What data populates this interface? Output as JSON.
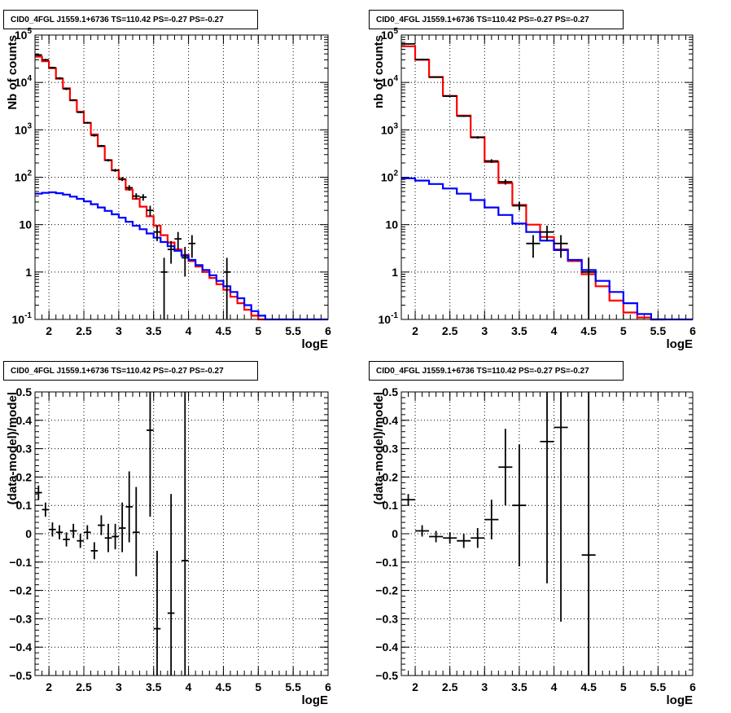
{
  "chart_data": [
    {
      "type": "step-histogram",
      "title": "CID0_4FGL J1559.1+6736 TS=110.42 PS=-0.27 PS=-0.27",
      "xlabel": "logE",
      "ylabel": "Nb of counts",
      "xlim": [
        1.8,
        6.0
      ],
      "ylim": [
        0.1,
        100000
      ],
      "yscale": "log",
      "grid": true,
      "xticks": [
        "2",
        "2.5",
        "3",
        "3.5",
        "4",
        "4.5",
        "5",
        "5.5",
        "6"
      ],
      "yticks": [
        "10^-1",
        "1",
        "10",
        "10^2",
        "10^3",
        "10^4",
        "10^5"
      ],
      "series": [
        {
          "color": "#ff0000",
          "kind": "step",
          "edges": [
            1.8,
            1.9,
            2.0,
            2.1,
            2.2,
            2.3,
            2.4,
            2.5,
            2.6,
            2.7,
            2.8,
            2.9,
            3.0,
            3.1,
            3.2,
            3.3,
            3.4,
            3.5,
            3.6,
            3.7,
            3.8,
            3.9,
            4.0,
            4.1,
            4.2,
            4.3,
            4.4,
            4.5,
            4.6,
            4.7,
            4.8,
            4.9,
            5.0,
            5.1
          ],
          "values": [
            35000,
            28000,
            20000,
            12000,
            7500,
            4200,
            2400,
            1400,
            800,
            450,
            230,
            140,
            90,
            55,
            35,
            24,
            15,
            9.5,
            6,
            4.2,
            3,
            2.3,
            1.7,
            1.3,
            1,
            0.75,
            0.55,
            0.42,
            0.3,
            0.22,
            0.16,
            0.12,
            0.1
          ]
        },
        {
          "color": "#0000ff",
          "kind": "step",
          "edges": [
            1.8,
            1.9,
            2.0,
            2.1,
            2.2,
            2.3,
            2.4,
            2.5,
            2.6,
            2.7,
            2.8,
            2.9,
            3.0,
            3.1,
            3.2,
            3.3,
            3.4,
            3.5,
            3.6,
            3.7,
            3.8,
            3.9,
            4.0,
            4.1,
            4.2,
            4.3,
            4.4,
            4.5,
            4.6,
            4.7,
            4.8,
            4.9,
            5.0,
            5.1,
            5.2,
            5.3,
            5.4,
            5.5,
            5.6,
            5.7,
            5.8,
            5.9,
            6.0
          ],
          "values": [
            45,
            47,
            48,
            46,
            43,
            39,
            35,
            31,
            27,
            23,
            19.5,
            16.5,
            14,
            11.5,
            9.5,
            8,
            6.5,
            5.3,
            4.3,
            3.5,
            2.8,
            2.2,
            1.8,
            1.4,
            1.1,
            0.85,
            0.65,
            0.5,
            0.38,
            0.28,
            0.2,
            0.15,
            0.12,
            0.1,
            0.1,
            0.1,
            0.1,
            0.1,
            0.1,
            0.1,
            0.1,
            0.1
          ]
        },
        {
          "color": "#000000",
          "kind": "errorbars",
          "points": [
            {
              "x": 1.85,
              "y": 38000,
              "xerr": 0.05,
              "lo": 36000,
              "hi": 40000
            },
            {
              "x": 1.95,
              "y": 30000,
              "xerr": 0.05,
              "lo": 28500,
              "hi": 31500
            },
            {
              "x": 2.05,
              "y": 20500,
              "xerr": 0.05,
              "lo": 19500,
              "hi": 21500
            },
            {
              "x": 2.15,
              "y": 12300,
              "xerr": 0.05,
              "lo": 11700,
              "hi": 12900
            },
            {
              "x": 2.25,
              "y": 7300,
              "xerr": 0.05,
              "lo": 6900,
              "hi": 7700
            },
            {
              "x": 2.35,
              "y": 4250,
              "xerr": 0.05,
              "lo": 4100,
              "hi": 4400
            },
            {
              "x": 2.45,
              "y": 2350,
              "xerr": 0.05,
              "lo": 2250,
              "hi": 2450
            },
            {
              "x": 2.55,
              "y": 1410,
              "xerr": 0.05,
              "lo": 1350,
              "hi": 1470
            },
            {
              "x": 2.65,
              "y": 760,
              "xerr": 0.05,
              "lo": 720,
              "hi": 800
            },
            {
              "x": 2.75,
              "y": 460,
              "xerr": 0.05,
              "lo": 440,
              "hi": 480
            },
            {
              "x": 2.85,
              "y": 228,
              "xerr": 0.05,
              "lo": 215,
              "hi": 241
            },
            {
              "x": 2.95,
              "y": 140,
              "xerr": 0.05,
              "lo": 130,
              "hi": 150
            },
            {
              "x": 3.05,
              "y": 92,
              "xerr": 0.05,
              "lo": 83,
              "hi": 101
            },
            {
              "x": 3.15,
              "y": 60,
              "xerr": 0.05,
              "lo": 52,
              "hi": 68
            },
            {
              "x": 3.25,
              "y": 40,
              "xerr": 0.05,
              "lo": 34,
              "hi": 46
            },
            {
              "x": 3.35,
              "y": 38,
              "xerr": 0.05,
              "lo": 32,
              "hi": 44
            },
            {
              "x": 3.45,
              "y": 20,
              "xerr": 0.05,
              "lo": 15,
              "hi": 25
            },
            {
              "x": 3.55,
              "y": 7,
              "xerr": 0.05,
              "lo": 4.5,
              "hi": 9.5
            },
            {
              "x": 3.65,
              "y": 1,
              "xerr": 0.05,
              "lo": 0.1,
              "hi": 2
            },
            {
              "x": 3.75,
              "y": 3,
              "xerr": 0.05,
              "lo": 1.5,
              "hi": 4.5
            },
            {
              "x": 3.85,
              "y": 5,
              "xerr": 0.05,
              "lo": 3,
              "hi": 7
            },
            {
              "x": 3.95,
              "y": 2,
              "xerr": 0.05,
              "lo": 0.8,
              "hi": 3.4
            },
            {
              "x": 4.05,
              "y": 4,
              "xerr": 0.05,
              "lo": 2,
              "hi": 6
            },
            {
              "x": 4.55,
              "y": 1,
              "xerr": 0.05,
              "lo": 0.1,
              "hi": 2
            }
          ]
        }
      ]
    },
    {
      "type": "step-histogram",
      "title": "CID0_4FGL J1559.1+6736 TS=110.42 PS=-0.27 PS=-0.27",
      "xlabel": "logE",
      "ylabel": "nb of counts",
      "xlim": [
        1.8,
        6.0
      ],
      "ylim": [
        0.1,
        100000
      ],
      "yscale": "log",
      "grid": true,
      "xticks": [
        "2",
        "2.5",
        "3",
        "3.5",
        "4",
        "4.5",
        "5",
        "5.5",
        "6"
      ],
      "yticks": [
        "10^-1",
        "1",
        "10",
        "10^2",
        "10^3",
        "10^4",
        "10^5"
      ],
      "series": [
        {
          "color": "#ff0000",
          "kind": "step",
          "edges": [
            1.8,
            2.0,
            2.2,
            2.4,
            2.6,
            2.8,
            3.0,
            3.2,
            3.4,
            3.6,
            3.8,
            4.0,
            4.2,
            4.4,
            4.6,
            4.8,
            5.0,
            5.2,
            5.4,
            5.6
          ],
          "values": [
            58000,
            30000,
            13000,
            5200,
            2000,
            700,
            210,
            75,
            26,
            10,
            5.5,
            3,
            1.7,
            0.9,
            0.5,
            0.25,
            0.14,
            0.11,
            0.1
          ]
        },
        {
          "color": "#0000ff",
          "kind": "step",
          "edges": [
            1.8,
            2.0,
            2.2,
            2.4,
            2.6,
            2.8,
            3.0,
            3.2,
            3.4,
            3.6,
            3.8,
            4.0,
            4.2,
            4.4,
            4.6,
            4.8,
            5.0,
            5.2,
            5.4,
            5.6,
            5.8,
            6.0
          ],
          "values": [
            95,
            85,
            72,
            58,
            45,
            33,
            23,
            16,
            10.5,
            7,
            4.6,
            2.9,
            1.8,
            1.1,
            0.65,
            0.38,
            0.22,
            0.13,
            0.1,
            0.1,
            0.1
          ]
        },
        {
          "color": "#000000",
          "kind": "errorbars",
          "points": [
            {
              "x": 1.9,
              "y": 65000,
              "xerr": 0.1,
              "lo": 63000,
              "hi": 67000
            },
            {
              "x": 2.1,
              "y": 30500,
              "xerr": 0.1,
              "lo": 29500,
              "hi": 31500
            },
            {
              "x": 2.3,
              "y": 12900,
              "xerr": 0.1,
              "lo": 12500,
              "hi": 13300
            },
            {
              "x": 2.5,
              "y": 5150,
              "xerr": 0.1,
              "lo": 4950,
              "hi": 5350
            },
            {
              "x": 2.7,
              "y": 1950,
              "xerr": 0.1,
              "lo": 1870,
              "hi": 2030
            },
            {
              "x": 2.9,
              "y": 690,
              "xerr": 0.1,
              "lo": 650,
              "hi": 730
            },
            {
              "x": 3.1,
              "y": 220,
              "xerr": 0.1,
              "lo": 200,
              "hi": 240
            },
            {
              "x": 3.3,
              "y": 80,
              "xerr": 0.1,
              "lo": 70,
              "hi": 90
            },
            {
              "x": 3.5,
              "y": 25,
              "xerr": 0.1,
              "lo": 20,
              "hi": 30
            },
            {
              "x": 3.7,
              "y": 4,
              "xerr": 0.1,
              "lo": 2,
              "hi": 6
            },
            {
              "x": 3.9,
              "y": 7,
              "xerr": 0.1,
              "lo": 4.5,
              "hi": 9.5
            },
            {
              "x": 4.1,
              "y": 4,
              "xerr": 0.1,
              "lo": 2,
              "hi": 6
            },
            {
              "x": 4.5,
              "y": 1,
              "xerr": 0.1,
              "lo": 0.1,
              "hi": 2
            }
          ]
        }
      ]
    },
    {
      "type": "scatter",
      "title": "CID0_4FGL J1559.1+6736 TS=110.42 PS=-0.27 PS=-0.27",
      "xlabel": "logE",
      "ylabel": "(data-model)/model",
      "xlim": [
        1.8,
        6.0
      ],
      "ylim": [
        -0.5,
        0.5
      ],
      "yscale": "linear",
      "grid": true,
      "xticks": [
        "2",
        "2.5",
        "3",
        "3.5",
        "4",
        "4.5",
        "5",
        "5.5",
        "6"
      ],
      "yticks": [
        "−0.5",
        "−0.4",
        "−0.3",
        "−0.2",
        "−0.1",
        "0",
        "0.1",
        "0.2",
        "0.3",
        "0.4",
        "0.5"
      ],
      "series": [
        {
          "color": "#000000",
          "kind": "errorbars",
          "points": [
            {
              "x": 1.85,
              "y": 0.145,
              "xerr": 0.05,
              "lo": 0.12,
              "hi": 0.17
            },
            {
              "x": 1.95,
              "y": 0.085,
              "xerr": 0.05,
              "lo": 0.06,
              "hi": 0.11
            },
            {
              "x": 2.05,
              "y": 0.015,
              "xerr": 0.05,
              "lo": -0.01,
              "hi": 0.04
            },
            {
              "x": 2.15,
              "y": 0.005,
              "xerr": 0.05,
              "lo": -0.02,
              "hi": 0.03
            },
            {
              "x": 2.25,
              "y": -0.02,
              "xerr": 0.05,
              "lo": -0.045,
              "hi": 0.005
            },
            {
              "x": 2.35,
              "y": 0.01,
              "xerr": 0.05,
              "lo": -0.015,
              "hi": 0.035
            },
            {
              "x": 2.45,
              "y": -0.025,
              "xerr": 0.05,
              "lo": -0.05,
              "hi": 0.0
            },
            {
              "x": 2.55,
              "y": 0.005,
              "xerr": 0.05,
              "lo": -0.02,
              "hi": 0.03
            },
            {
              "x": 2.65,
              "y": -0.06,
              "xerr": 0.05,
              "lo": -0.09,
              "hi": -0.03
            },
            {
              "x": 2.75,
              "y": 0.03,
              "xerr": 0.05,
              "lo": -0.005,
              "hi": 0.065
            },
            {
              "x": 2.85,
              "y": -0.015,
              "xerr": 0.05,
              "lo": -0.065,
              "hi": 0.035
            },
            {
              "x": 2.95,
              "y": -0.01,
              "xerr": 0.05,
              "lo": -0.055,
              "hi": 0.035
            },
            {
              "x": 3.05,
              "y": 0.02,
              "xerr": 0.05,
              "lo": -0.065,
              "hi": 0.11
            },
            {
              "x": 3.15,
              "y": 0.095,
              "xerr": 0.05,
              "lo": -0.03,
              "hi": 0.22
            },
            {
              "x": 3.25,
              "y": 0.005,
              "xerr": 0.05,
              "lo": -0.15,
              "hi": 0.165
            },
            {
              "x": 3.45,
              "y": 0.365,
              "xerr": 0.05,
              "lo": 0.06,
              "hi": 0.5
            },
            {
              "x": 3.55,
              "y": -0.335,
              "xerr": 0.05,
              "lo": -0.5,
              "hi": -0.06
            },
            {
              "x": 3.75,
              "y": -0.28,
              "xerr": 0.05,
              "lo": -0.5,
              "hi": 0.14
            },
            {
              "x": 3.95,
              "y": -0.095,
              "xerr": 0.05,
              "lo": -0.5,
              "hi": 0.5
            }
          ]
        }
      ]
    },
    {
      "type": "scatter",
      "title": "CID0_4FGL J1559.1+6736 TS=110.42 PS=-0.27 PS=-0.27",
      "xlabel": "logE",
      "ylabel": "(data-model)/model",
      "xlim": [
        1.8,
        6.0
      ],
      "ylim": [
        -0.5,
        0.5
      ],
      "yscale": "linear",
      "grid": true,
      "xticks": [
        "2",
        "2.5",
        "3",
        "3.5",
        "4",
        "4.5",
        "5",
        "5.5",
        "6"
      ],
      "yticks": [
        "−0.5",
        "−0.4",
        "−0.3",
        "−0.2",
        "−0.1",
        "0",
        "0.1",
        "0.2",
        "0.3",
        "0.4",
        "0.5"
      ],
      "series": [
        {
          "color": "#000000",
          "kind": "errorbars",
          "points": [
            {
              "x": 1.9,
              "y": 0.12,
              "xerr": 0.1,
              "lo": 0.1,
              "hi": 0.14
            },
            {
              "x": 2.1,
              "y": 0.01,
              "xerr": 0.1,
              "lo": -0.01,
              "hi": 0.03
            },
            {
              "x": 2.3,
              "y": -0.01,
              "xerr": 0.1,
              "lo": -0.03,
              "hi": 0.01
            },
            {
              "x": 2.5,
              "y": -0.015,
              "xerr": 0.1,
              "lo": -0.035,
              "hi": 0.005
            },
            {
              "x": 2.7,
              "y": -0.025,
              "xerr": 0.1,
              "lo": -0.05,
              "hi": 0.0
            },
            {
              "x": 2.9,
              "y": -0.015,
              "xerr": 0.1,
              "lo": -0.05,
              "hi": 0.02
            },
            {
              "x": 3.1,
              "y": 0.05,
              "xerr": 0.1,
              "lo": -0.02,
              "hi": 0.12
            },
            {
              "x": 3.3,
              "y": 0.235,
              "xerr": 0.1,
              "lo": 0.1,
              "hi": 0.37
            },
            {
              "x": 3.5,
              "y": 0.1,
              "xerr": 0.1,
              "lo": -0.115,
              "hi": 0.315
            },
            {
              "x": 3.9,
              "y": 0.325,
              "xerr": 0.1,
              "lo": -0.175,
              "hi": 0.5
            },
            {
              "x": 4.1,
              "y": 0.375,
              "xerr": 0.1,
              "lo": -0.31,
              "hi": 0.5
            },
            {
              "x": 4.5,
              "y": -0.075,
              "xerr": 0.1,
              "lo": -0.5,
              "hi": 0.5
            }
          ]
        }
      ]
    }
  ]
}
